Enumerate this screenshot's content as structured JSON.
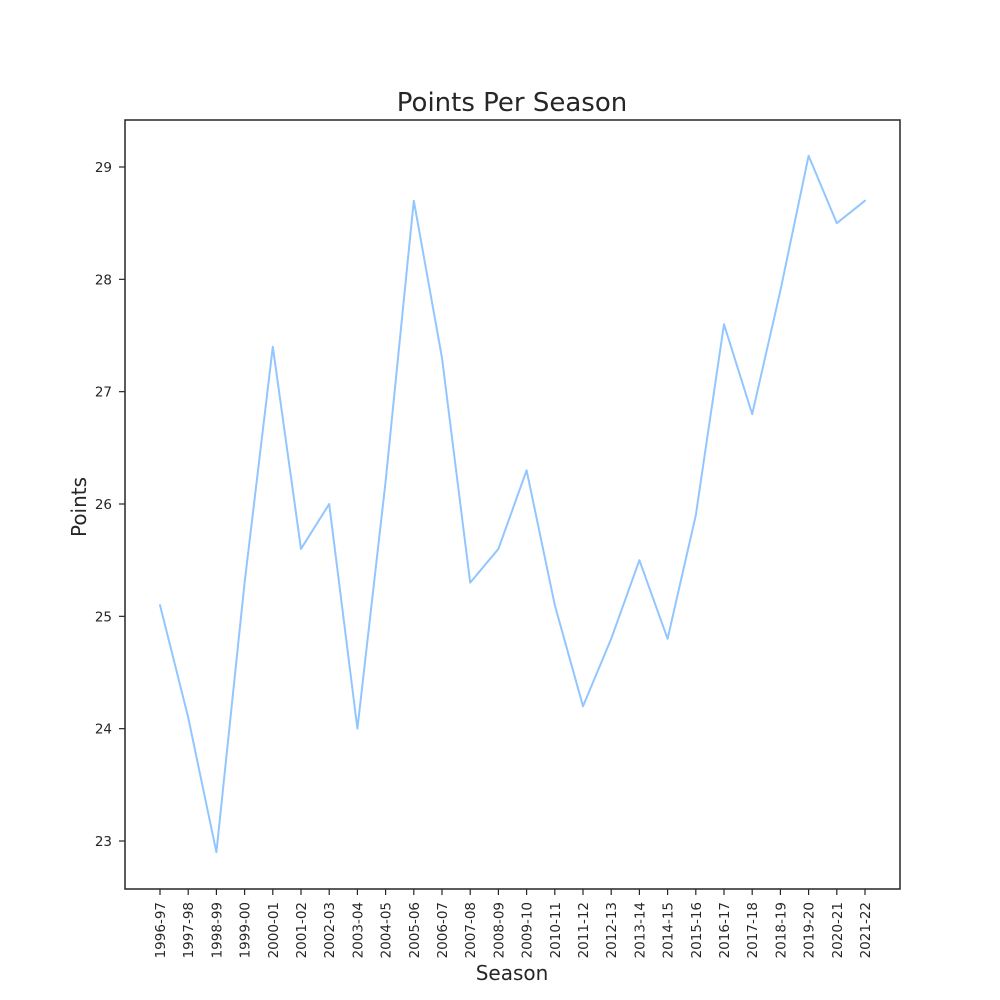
{
  "chart_data": {
    "type": "line",
    "title": "Points Per Season",
    "xlabel": "Season",
    "ylabel": "Points",
    "categories": [
      "1996-97",
      "1997-98",
      "1998-99",
      "1999-00",
      "2000-01",
      "2001-02",
      "2002-03",
      "2003-04",
      "2004-05",
      "2005-06",
      "2006-07",
      "2007-08",
      "2008-09",
      "2009-10",
      "2010-11",
      "2011-12",
      "2012-13",
      "2013-14",
      "2014-15",
      "2015-16",
      "2016-17",
      "2017-18",
      "2018-19",
      "2019-20",
      "2020-21",
      "2021-22"
    ],
    "series": [
      {
        "values": [
          25.1,
          24.1,
          22.9,
          25.3,
          27.4,
          25.6,
          26.0,
          24.0,
          26.2,
          28.7,
          27.3,
          25.3,
          25.6,
          26.3,
          25.1,
          24.2,
          24.8,
          25.5,
          24.8,
          25.9,
          27.6,
          26.8,
          27.9,
          29.1,
          28.5,
          28.7
        ],
        "color": "#92c6ff"
      }
    ],
    "yticks": [
      23,
      24,
      25,
      26,
      27,
      28,
      29
    ],
    "ylim": [
      22.6,
      29.4
    ],
    "grid": false,
    "legend": "none"
  }
}
